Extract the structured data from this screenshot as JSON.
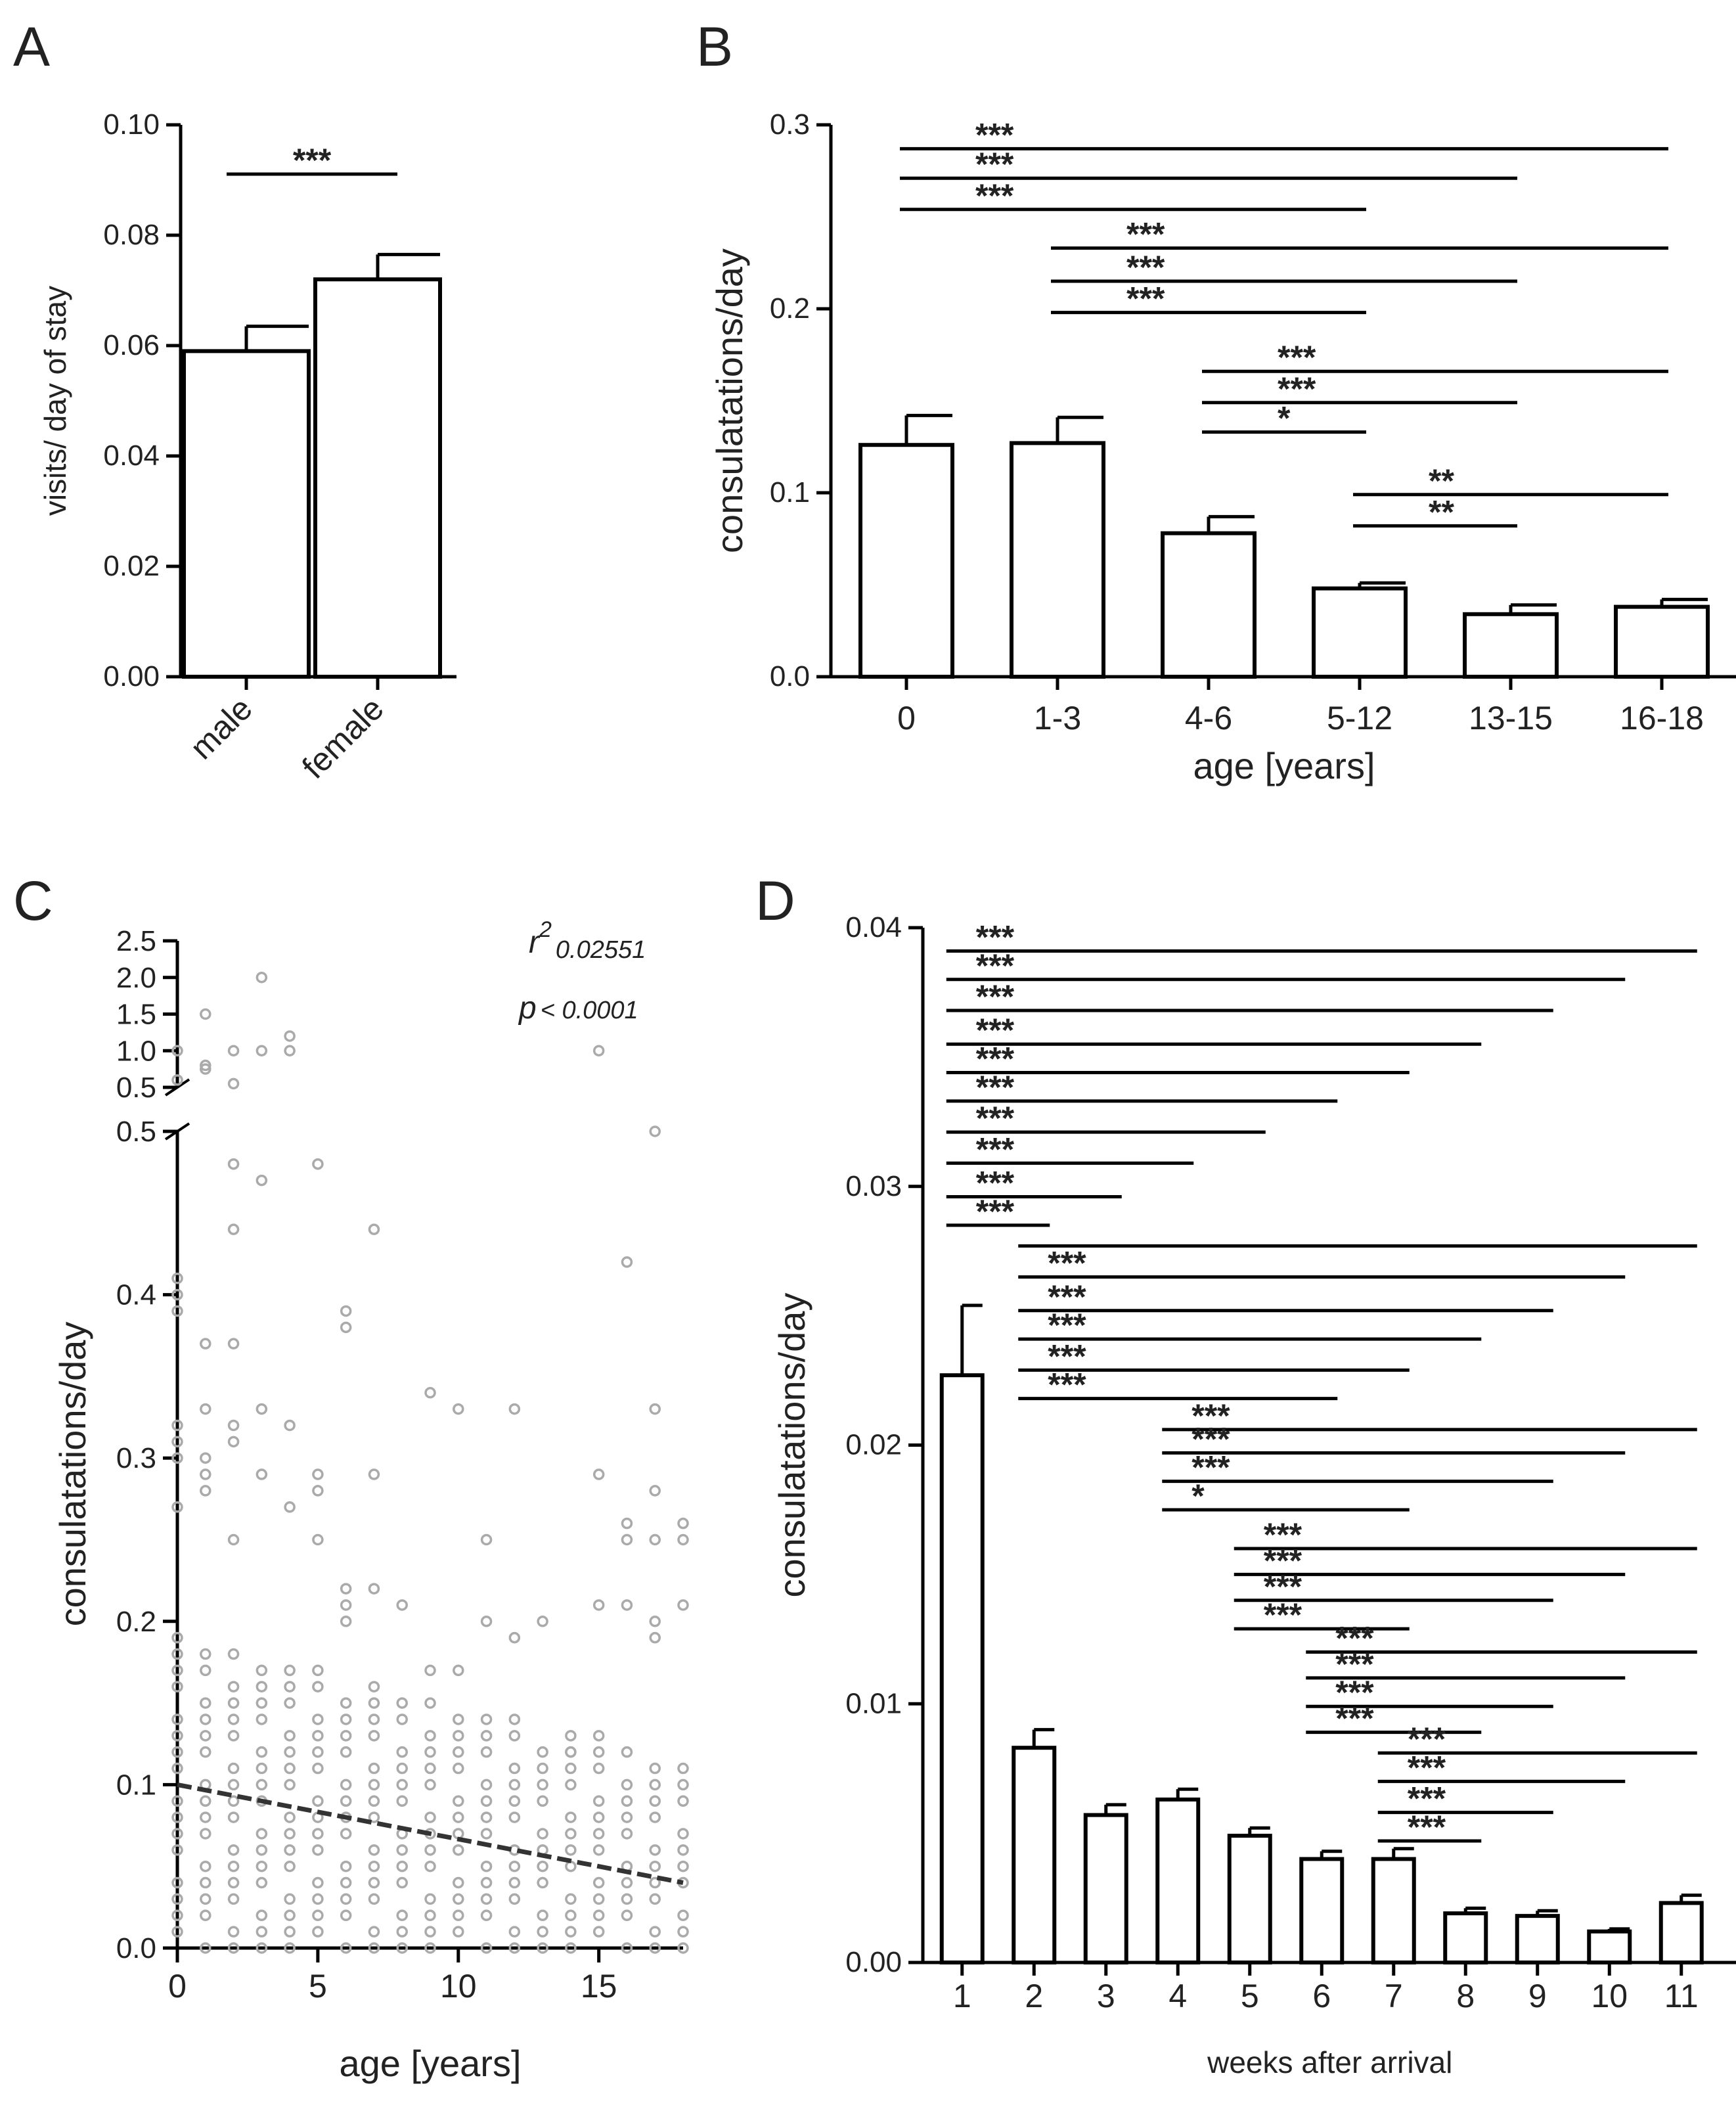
{
  "chart_data": [
    {
      "panel": "A",
      "type": "bar",
      "categories": [
        "male",
        "female"
      ],
      "values": [
        0.059,
        0.072
      ],
      "errors": [
        0.0045,
        0.0045
      ],
      "ylabel": "visits/ day of stay",
      "yticks": [
        "0.00",
        "0.02",
        "0.04",
        "0.06",
        "0.08",
        "0.10"
      ],
      "ylim": [
        0,
        0.1
      ],
      "significance": [
        {
          "from": 0,
          "to": 1,
          "label": "***"
        }
      ]
    },
    {
      "panel": "B",
      "type": "bar",
      "categories": [
        "0",
        "1-3",
        "4-6",
        "5-12",
        "13-15",
        "16-18"
      ],
      "values": [
        0.126,
        0.127,
        0.078,
        0.048,
        0.034,
        0.038
      ],
      "errors": [
        0.016,
        0.014,
        0.009,
        0.003,
        0.005,
        0.004
      ],
      "xlabel": "age [years]",
      "ylabel": "consulatations/day",
      "yticks": [
        "0.0",
        "0.1",
        "0.2",
        "0.3"
      ],
      "ylim": [
        0,
        0.3
      ],
      "significance": [
        {
          "from": 0,
          "to": 5,
          "label": "***",
          "y": 0.287
        },
        {
          "from": 0,
          "to": 4,
          "label": "***",
          "y": 0.271
        },
        {
          "from": 0,
          "to": 3,
          "label": "***",
          "y": 0.254
        },
        {
          "from": 1,
          "to": 5,
          "label": "***",
          "y": 0.233
        },
        {
          "from": 1,
          "to": 4,
          "label": "***",
          "y": 0.215
        },
        {
          "from": 1,
          "to": 3,
          "label": "***",
          "y": 0.198
        },
        {
          "from": 2,
          "to": 5,
          "label": "***",
          "y": 0.166
        },
        {
          "from": 2,
          "to": 4,
          "label": "***",
          "y": 0.149
        },
        {
          "from": 2,
          "to": 3,
          "label": "*",
          "y": 0.133
        },
        {
          "from": 3,
          "to": 5,
          "label": "**",
          "y": 0.099
        },
        {
          "from": 3,
          "to": 4,
          "label": "**",
          "y": 0.082
        }
      ]
    },
    {
      "panel": "C",
      "type": "scatter",
      "xlabel": "age [years]",
      "ylabel": "consulatations/day",
      "xticks": [
        "0",
        "5",
        "10",
        "15"
      ],
      "xlim": [
        0,
        18
      ],
      "yticks_lower": [
        "0.0",
        "0.1",
        "0.2",
        "0.3",
        "0.4",
        "0.5"
      ],
      "yticks_upper": [
        "0.5",
        "1.0",
        "1.5",
        "2.0",
        "2.5"
      ],
      "ylim_lower": [
        0,
        0.5
      ],
      "ylim_upper": [
        0.5,
        2.5
      ],
      "y_axis_break": true,
      "r2_label": "r",
      "r2_sup": "2",
      "r2_value": "0.02551",
      "p_label": "p",
      "p_value": "< 0.0001",
      "regression": {
        "x": [
          0,
          18
        ],
        "y": [
          0.1,
          0.04
        ]
      },
      "point_color": "#aaaaaa",
      "outliers": [
        [
          0,
          1.0
        ],
        [
          0,
          0.6
        ],
        [
          1,
          1.5
        ],
        [
          1,
          0.8
        ],
        [
          1,
          0.75
        ],
        [
          2,
          1.0
        ],
        [
          2,
          0.55
        ],
        [
          3,
          2.0
        ],
        [
          3,
          1.0
        ],
        [
          4,
          1.2
        ],
        [
          4,
          1.0
        ],
        [
          15,
          1.0
        ],
        [
          2,
          0.48
        ],
        [
          2,
          0.44
        ],
        [
          3,
          0.47
        ],
        [
          5,
          0.48
        ],
        [
          7,
          0.44
        ],
        [
          17,
          0.5
        ],
        [
          16,
          0.42
        ],
        [
          0,
          0.41
        ],
        [
          0,
          0.4
        ],
        [
          0,
          0.39
        ],
        [
          6,
          0.39
        ],
        [
          6,
          0.38
        ],
        [
          1,
          0.37
        ],
        [
          2,
          0.37
        ],
        [
          9,
          0.34
        ],
        [
          10,
          0.33
        ],
        [
          12,
          0.33
        ],
        [
          3,
          0.33
        ],
        [
          1,
          0.33
        ],
        [
          17,
          0.33
        ],
        [
          2,
          0.32
        ],
        [
          2,
          0.31
        ],
        [
          4,
          0.32
        ],
        [
          0,
          0.32
        ],
        [
          0,
          0.31
        ],
        [
          0,
          0.3
        ],
        [
          3,
          0.29
        ],
        [
          5,
          0.29
        ],
        [
          5,
          0.28
        ],
        [
          7,
          0.29
        ],
        [
          15,
          0.29
        ],
        [
          17,
          0.28
        ],
        [
          1,
          0.3
        ],
        [
          1,
          0.29
        ],
        [
          1,
          0.28
        ],
        [
          0,
          0.27
        ],
        [
          4,
          0.27
        ],
        [
          18,
          0.26
        ],
        [
          16,
          0.26
        ],
        [
          16,
          0.25
        ],
        [
          17,
          0.25
        ],
        [
          18,
          0.25
        ],
        [
          11,
          0.25
        ],
        [
          2,
          0.25
        ],
        [
          5,
          0.25
        ],
        [
          6,
          0.22
        ],
        [
          6,
          0.21
        ],
        [
          6,
          0.2
        ],
        [
          7,
          0.22
        ],
        [
          8,
          0.21
        ],
        [
          9,
          0.17
        ],
        [
          10,
          0.17
        ],
        [
          13,
          0.2
        ],
        [
          12,
          0.19
        ],
        [
          11,
          0.2
        ],
        [
          15,
          0.21
        ],
        [
          16,
          0.21
        ],
        [
          18,
          0.21
        ],
        [
          14,
          0.12
        ],
        [
          17,
          0.2
        ],
        [
          17,
          0.19
        ]
      ]
    },
    {
      "panel": "D",
      "type": "bar",
      "categories": [
        "1",
        "2",
        "3",
        "4",
        "5",
        "6",
        "7",
        "8",
        "9",
        "10",
        "11"
      ],
      "values": [
        0.0227,
        0.0083,
        0.0057,
        0.0063,
        0.0049,
        0.004,
        0.004,
        0.0019,
        0.0018,
        0.0012,
        0.0023
      ],
      "errors": [
        0.0027,
        0.0007,
        0.0004,
        0.0004,
        0.0003,
        0.0003,
        0.0004,
        0.0002,
        0.0002,
        0.0001,
        0.0003
      ],
      "xlabel": "weeks after arrival",
      "ylabel": "consulatations/day",
      "yticks": [
        "0.00",
        "0.01",
        "0.02",
        "0.03",
        "0.04"
      ],
      "ylim": [
        0,
        0.04
      ],
      "significance": [
        {
          "from": 0,
          "to": 10,
          "label": "***",
          "y": 0.0391
        },
        {
          "from": 0,
          "to": 9,
          "label": "***",
          "y": 0.038
        },
        {
          "from": 0,
          "to": 8,
          "label": "***",
          "y": 0.0368
        },
        {
          "from": 0,
          "to": 7,
          "label": "***",
          "y": 0.0355
        },
        {
          "from": 0,
          "to": 6,
          "label": "***",
          "y": 0.0344
        },
        {
          "from": 0,
          "to": 5,
          "label": "***",
          "y": 0.0333
        },
        {
          "from": 0,
          "to": 4,
          "label": "***",
          "y": 0.0321
        },
        {
          "from": 0,
          "to": 3,
          "label": "***",
          "y": 0.0309
        },
        {
          "from": 0,
          "to": 2,
          "label": "***",
          "y": 0.0296
        },
        {
          "from": 0,
          "to": 1,
          "label": "***",
          "y": 0.0285
        },
        {
          "from": 1,
          "to": 10,
          "label": "",
          "y": 0.0277
        },
        {
          "from": 1,
          "to": 9,
          "label": "***",
          "y": 0.0265
        },
        {
          "from": 1,
          "to": 8,
          "label": "***",
          "y": 0.0252
        },
        {
          "from": 1,
          "to": 7,
          "label": "***",
          "y": 0.0241
        },
        {
          "from": 1,
          "to": 6,
          "label": "***",
          "y": 0.0229
        },
        {
          "from": 1,
          "to": 5,
          "label": "***",
          "y": 0.0218
        },
        {
          "from": 3,
          "to": 10,
          "label": "***",
          "y": 0.0206
        },
        {
          "from": 3,
          "to": 9,
          "label": "***",
          "y": 0.0197
        },
        {
          "from": 3,
          "to": 8,
          "label": "***",
          "y": 0.0186
        },
        {
          "from": 3,
          "to": 6,
          "label": "*",
          "y": 0.0175
        },
        {
          "from": 4,
          "to": 10,
          "label": "***",
          "y": 0.016
        },
        {
          "from": 4,
          "to": 9,
          "label": "***",
          "y": 0.015
        },
        {
          "from": 4,
          "to": 8,
          "label": "***",
          "y": 0.014
        },
        {
          "from": 4,
          "to": 6,
          "label": "***",
          "y": 0.0129
        },
        {
          "from": 5,
          "to": 10,
          "label": "***",
          "y": 0.012
        },
        {
          "from": 5,
          "to": 9,
          "label": "***",
          "y": 0.011
        },
        {
          "from": 5,
          "to": 8,
          "label": "***",
          "y": 0.0099
        },
        {
          "from": 5,
          "to": 7,
          "label": "***",
          "y": 0.0089
        },
        {
          "from": 6,
          "to": 10,
          "label": "***",
          "y": 0.0081
        },
        {
          "from": 6,
          "to": 9,
          "label": "***",
          "y": 0.007
        },
        {
          "from": 6,
          "to": 8,
          "label": "***",
          "y": 0.0058
        },
        {
          "from": 6,
          "to": 7,
          "label": "***",
          "y": 0.0047
        }
      ]
    }
  ]
}
